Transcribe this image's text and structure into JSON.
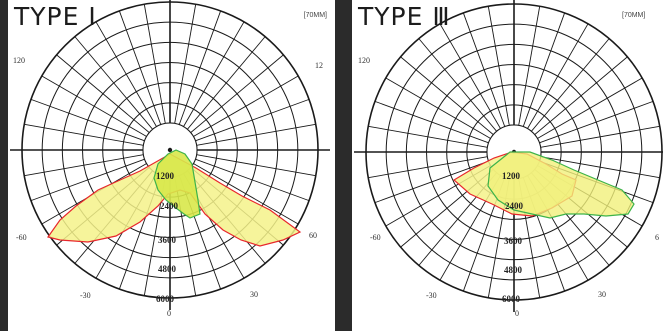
{
  "panels": [
    {
      "title": "TYPE Ⅰ",
      "note": "[70MM]",
      "angle_labels": {
        "top_left": "120",
        "top_right": "12",
        "left": "-60",
        "right": "60",
        "bottom_left": "-30",
        "bottom_right": "30",
        "bottom": "0"
      },
      "value_labels": [
        "1200",
        "2400",
        "3600",
        "4800",
        "6000"
      ]
    },
    {
      "title": "TYPE Ⅲ",
      "note": "[70MM]",
      "angle_labels": {
        "top_left": "120",
        "left": "-60",
        "right": "6",
        "bottom_left": "-30",
        "bottom_right": "30",
        "bottom": "0"
      },
      "value_labels": [
        "1200",
        "2400",
        "3600",
        "4800",
        "6000"
      ]
    }
  ],
  "colors": {
    "fill": "#f4f28a",
    "core_fill": "#d8e84a",
    "red_curve": "#e8272c",
    "green_curve": "#3db34a",
    "grid": "#1a1a1a"
  }
}
